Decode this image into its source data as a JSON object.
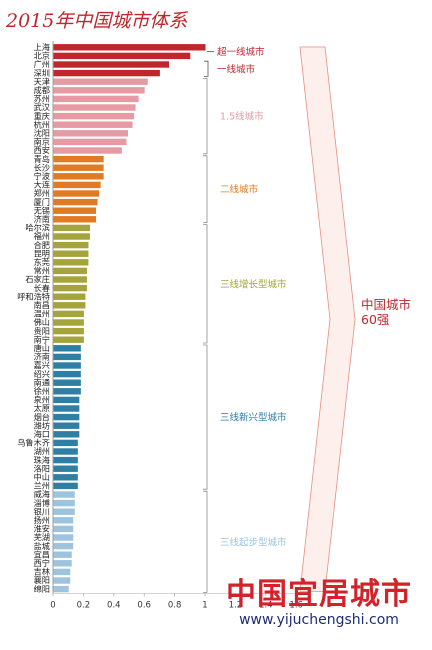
{
  "title": "2015年中国城市体系",
  "chart_data": {
    "type": "bar",
    "orientation": "horizontal",
    "title": "2015年中国城市体系",
    "xlim": [
      0,
      1.6
    ],
    "x_ticks": [
      "0",
      "0.2",
      "0.4",
      "0.6",
      "0.8",
      "1",
      "1.2",
      "1.4",
      "1.6"
    ],
    "categories": [
      "上海",
      "北京",
      "广州",
      "深圳",
      "天津",
      "成都",
      "苏州",
      "武汉",
      "重庆",
      "杭州",
      "沈阳",
      "南京",
      "西安",
      "青岛",
      "长沙",
      "宁波",
      "大连",
      "郑州",
      "厦门",
      "无锡",
      "济南",
      "哈尔滨",
      "福州",
      "合肥",
      "昆明",
      "东莞",
      "常州",
      "石家庄",
      "长春",
      "呼和浩特",
      "南昌",
      "温州",
      "佛山",
      "贵阳",
      "南宁",
      "唐山",
      "济南",
      "嘉兴",
      "绍兴",
      "南通",
      "徐州",
      "泉州",
      "太原",
      "烟台",
      "潍坊",
      "海口",
      "乌鲁木齐",
      "湖州",
      "珠海",
      "洛阳",
      "中山",
      "兰州",
      "威海",
      "淄博",
      "银川",
      "扬州",
      "淮安",
      "芜湖",
      "盐城",
      "宜昌",
      "西宁",
      "吉林",
      "襄阳",
      "绵阳"
    ],
    "values": [
      1.0,
      0.9,
      0.76,
      0.7,
      0.62,
      0.6,
      0.56,
      0.54,
      0.53,
      0.52,
      0.49,
      0.48,
      0.45,
      0.33,
      0.33,
      0.33,
      0.31,
      0.3,
      0.29,
      0.28,
      0.28,
      0.24,
      0.24,
      0.23,
      0.23,
      0.23,
      0.22,
      0.22,
      0.22,
      0.21,
      0.21,
      0.2,
      0.2,
      0.2,
      0.2,
      0.18,
      0.18,
      0.18,
      0.18,
      0.18,
      0.18,
      0.17,
      0.17,
      0.17,
      0.17,
      0.17,
      0.16,
      0.16,
      0.16,
      0.16,
      0.16,
      0.16,
      0.14,
      0.14,
      0.14,
      0.13,
      0.13,
      0.13,
      0.13,
      0.12,
      0.12,
      0.11,
      0.11,
      0.1
    ],
    "tiers": [
      {
        "label": "超一线城市",
        "start": 0,
        "end": 1,
        "color": "#c0272d"
      },
      {
        "label": "一线城市",
        "start": 2,
        "end": 3,
        "color": "#c0272d"
      },
      {
        "label": "1.5线城市",
        "start": 4,
        "end": 12,
        "color": "#e69aa3"
      },
      {
        "label": "二线城市",
        "start": 13,
        "end": 20,
        "color": "#e07b24"
      },
      {
        "label": "三线增长型城市",
        "start": 21,
        "end": 34,
        "color": "#a5a33c"
      },
      {
        "label": "三线新兴型城市",
        "start": 35,
        "end": 51,
        "color": "#2f7ea3"
      },
      {
        "label": "三线起步型城市",
        "start": 52,
        "end": 63,
        "color": "#9dc3dd"
      }
    ],
    "summary_label_1": "中国城市",
    "summary_label_2": "60强"
  },
  "watermark": {
    "brand": "中国宜居城市",
    "url": "www.yijuchengshi.com"
  },
  "colors": {
    "tier1_bar": "#c0272d",
    "tier15_bar": "#e69aa3",
    "tier2_bar": "#e07b24",
    "tier3a_bar": "#a5a33c",
    "tier3b_bar": "#2f7ea3",
    "tier3c_bar": "#9dc3dd",
    "arrow_fill": "#fdf0ec",
    "arrow_stroke": "#e58f80"
  }
}
